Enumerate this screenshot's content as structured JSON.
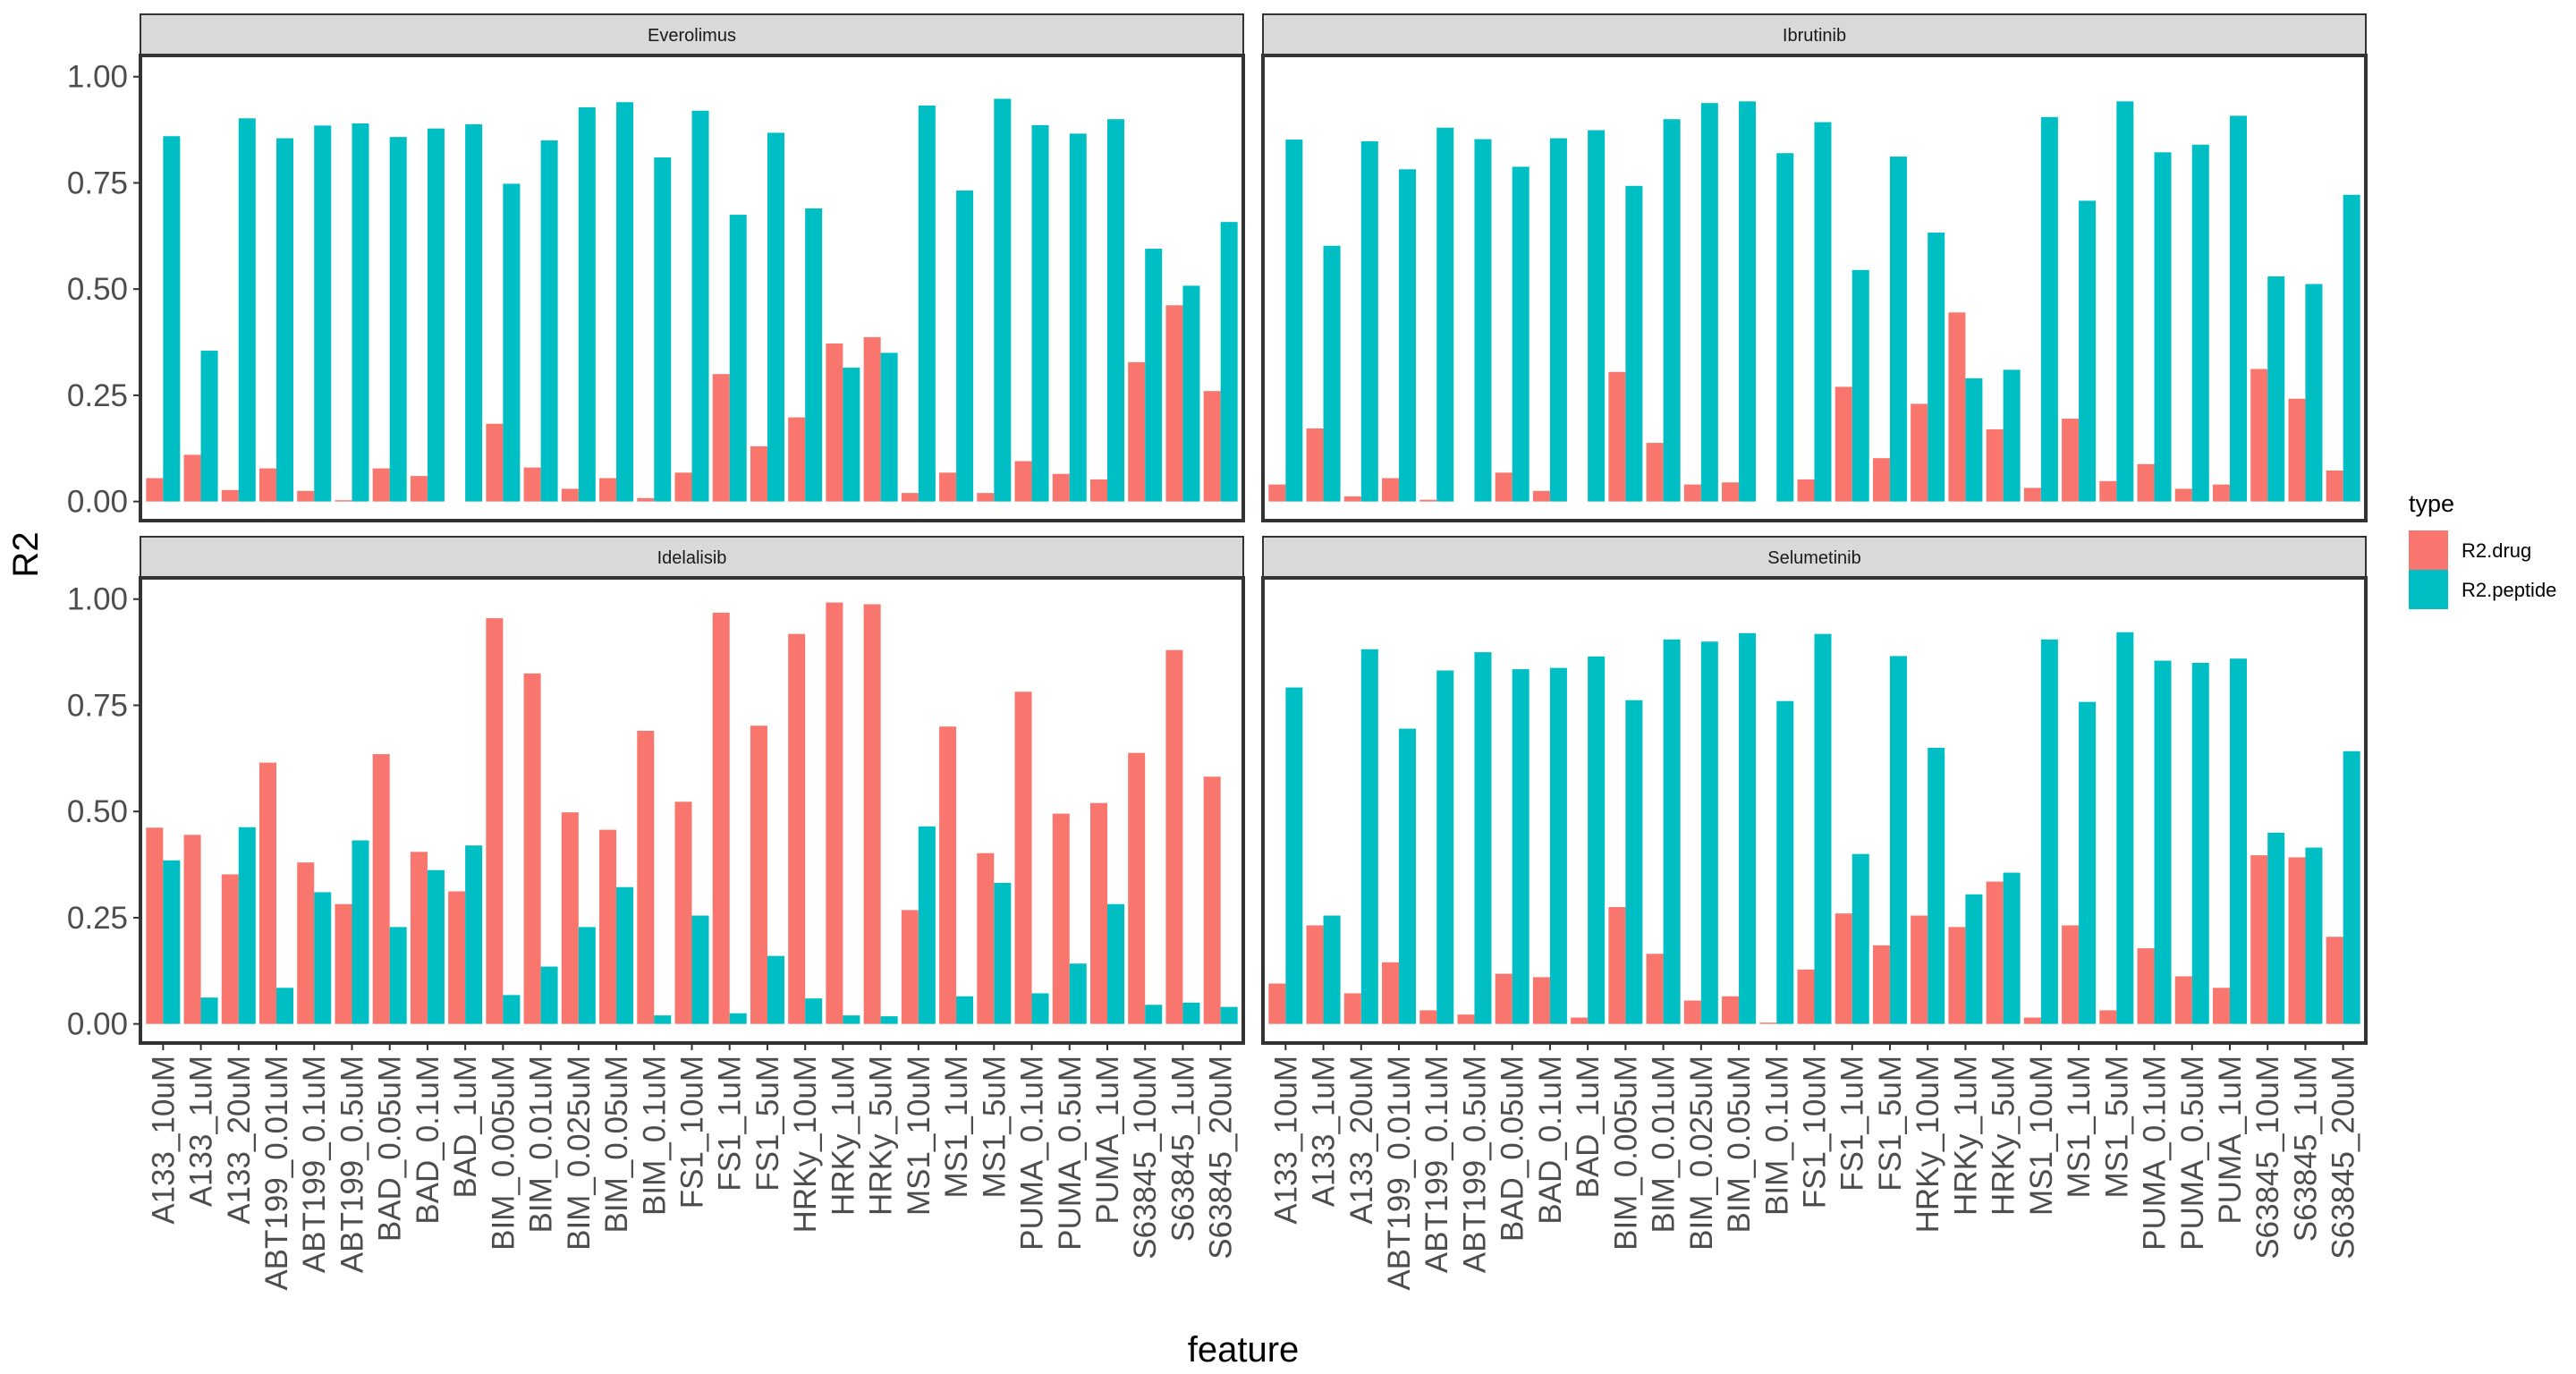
{
  "chart_data": {
    "type": "bar",
    "xlabel": "feature",
    "ylabel": "R2",
    "ylim": [
      -0.045,
      1.05
    ],
    "yticks": [
      0.0,
      0.25,
      0.5,
      0.75,
      1.0
    ],
    "ytick_labels": [
      "0.00",
      "0.25",
      "0.50",
      "0.75",
      "1.00"
    ],
    "legend": {
      "title": "type",
      "position": "right",
      "entries": [
        {
          "name": "R2.drug",
          "color": "#f8766d"
        },
        {
          "name": "R2.peptide",
          "color": "#00bfc4"
        }
      ]
    },
    "categories": [
      "A133_10uM",
      "A133_1uM",
      "A133_20uM",
      "ABT199_0.01uM",
      "ABT199_0.1uM",
      "ABT199_0.5uM",
      "BAD_0.05uM",
      "BAD_0.1uM",
      "BAD_1uM",
      "BIM_0.005uM",
      "BIM_0.01uM",
      "BIM_0.025uM",
      "BIM_0.05uM",
      "BIM_0.1uM",
      "FS1_10uM",
      "FS1_1uM",
      "FS1_5uM",
      "HRKy_10uM",
      "HRKy_1uM",
      "HRKy_5uM",
      "MS1_10uM",
      "MS1_1uM",
      "MS1_5uM",
      "PUMA_0.1uM",
      "PUMA_0.5uM",
      "PUMA_1uM",
      "S63845_10uM",
      "S63845_1uM",
      "S63845_20uM"
    ],
    "panels": [
      {
        "title": "Everolimus",
        "series": [
          {
            "name": "R2.drug",
            "values": [
              0.055,
              0.11,
              0.027,
              0.078,
              0.025,
              0.003,
              0.078,
              0.06,
              0.0,
              0.183,
              0.08,
              0.03,
              0.055,
              0.008,
              0.068,
              0.3,
              0.13,
              0.198,
              0.372,
              0.387,
              0.02,
              0.068,
              0.02,
              0.095,
              0.065,
              0.052,
              0.328,
              0.462,
              0.26
            ]
          },
          {
            "name": "R2.peptide",
            "values": [
              0.86,
              0.355,
              0.902,
              0.855,
              0.885,
              0.89,
              0.858,
              0.878,
              0.888,
              0.748,
              0.85,
              0.928,
              0.94,
              0.81,
              0.92,
              0.675,
              0.868,
              0.69,
              0.315,
              0.35,
              0.932,
              0.732,
              0.948,
              0.886,
              0.866,
              0.9,
              0.595,
              0.508,
              0.658
            ]
          }
        ]
      },
      {
        "title": "Ibrutinib",
        "series": [
          {
            "name": "R2.drug",
            "values": [
              0.04,
              0.172,
              0.012,
              0.055,
              0.004,
              0.0,
              0.068,
              0.025,
              0.0,
              0.305,
              0.138,
              0.04,
              0.045,
              0.0,
              0.052,
              0.27,
              0.102,
              0.23,
              0.445,
              0.17,
              0.032,
              0.195,
              0.048,
              0.088,
              0.03,
              0.04,
              0.312,
              0.242,
              0.073
            ]
          },
          {
            "name": "R2.peptide",
            "values": [
              0.852,
              0.602,
              0.848,
              0.782,
              0.88,
              0.853,
              0.788,
              0.855,
              0.874,
              0.743,
              0.9,
              0.938,
              0.942,
              0.82,
              0.893,
              0.545,
              0.812,
              0.633,
              0.29,
              0.31,
              0.905,
              0.708,
              0.942,
              0.822,
              0.84,
              0.908,
              0.53,
              0.512,
              0.722
            ]
          }
        ]
      },
      {
        "title": "Idelalisib",
        "series": [
          {
            "name": "R2.drug",
            "values": [
              0.462,
              0.445,
              0.352,
              0.615,
              0.38,
              0.282,
              0.635,
              0.405,
              0.312,
              0.955,
              0.825,
              0.498,
              0.457,
              0.69,
              0.523,
              0.968,
              0.702,
              0.918,
              0.992,
              0.988,
              0.268,
              0.7,
              0.402,
              0.782,
              0.495,
              0.52,
              0.638,
              0.88,
              0.582
            ]
          },
          {
            "name": "R2.peptide",
            "values": [
              0.385,
              0.062,
              0.463,
              0.085,
              0.31,
              0.432,
              0.228,
              0.362,
              0.42,
              0.068,
              0.135,
              0.228,
              0.322,
              0.02,
              0.255,
              0.025,
              0.16,
              0.06,
              0.02,
              0.018,
              0.465,
              0.065,
              0.332,
              0.072,
              0.142,
              0.282,
              0.045,
              0.05,
              0.04
            ]
          }
        ]
      },
      {
        "title": "Selumetinib",
        "series": [
          {
            "name": "R2.drug",
            "values": [
              0.095,
              0.232,
              0.072,
              0.145,
              0.032,
              0.022,
              0.118,
              0.11,
              0.015,
              0.275,
              0.165,
              0.055,
              0.065,
              0.003,
              0.128,
              0.26,
              0.185,
              0.255,
              0.228,
              0.335,
              0.015,
              0.232,
              0.032,
              0.178,
              0.112,
              0.085,
              0.397,
              0.392,
              0.205
            ]
          },
          {
            "name": "R2.peptide",
            "values": [
              0.792,
              0.255,
              0.882,
              0.695,
              0.832,
              0.875,
              0.835,
              0.838,
              0.865,
              0.762,
              0.905,
              0.9,
              0.92,
              0.76,
              0.918,
              0.4,
              0.866,
              0.65,
              0.305,
              0.356,
              0.905,
              0.758,
              0.922,
              0.855,
              0.85,
              0.86,
              0.45,
              0.415,
              0.642
            ]
          }
        ]
      }
    ]
  }
}
